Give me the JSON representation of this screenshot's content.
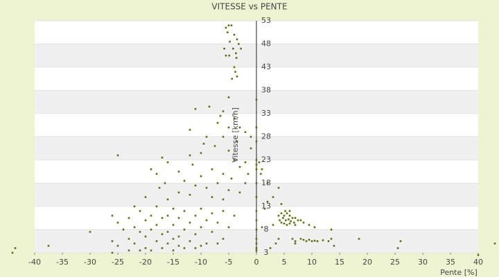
{
  "chart_data": {
    "type": "scatter",
    "title": "VITESSE vs PENTE",
    "x_label": "Pente [%]",
    "y_label": "Vitesse [km/h]",
    "xlim": [
      -40,
      40
    ],
    "xticks": [
      -40,
      -35,
      -30,
      -25,
      -20,
      -15,
      -10,
      -5,
      0,
      5,
      10,
      15,
      20,
      25,
      30,
      35,
      40
    ],
    "ylim": [
      3,
      53
    ],
    "yticks": [
      3,
      8,
      13,
      18,
      23,
      28,
      33,
      38,
      43,
      48,
      53
    ],
    "grid": true,
    "series": [
      {
        "color": "#5f6e0c",
        "x": [
          -5.5,
          -5,
          -4.5,
          -5.2,
          -4,
          -3.5,
          -4.8,
          -3.2,
          -5.8,
          -4.2,
          -3.7,
          -5.5,
          -4.9,
          -3.6,
          -2.8,
          -4,
          -3.8,
          -3.5,
          -4.4,
          -5,
          -6,
          -8.5,
          -11,
          -6.5,
          -4,
          -7,
          -3,
          -5,
          -12,
          -9,
          -2,
          -1,
          -6,
          -3.5,
          -9.5,
          -7.5,
          -1,
          -5,
          -10,
          -12,
          -25,
          -17,
          -4,
          -2,
          -16,
          -11.5,
          -19,
          -8,
          -3,
          -14,
          -6,
          -1.5,
          -18,
          -10,
          -4.5,
          -13,
          -16.5,
          -7,
          -2,
          -11,
          -17.5,
          -9,
          -5,
          -14,
          -3,
          -12,
          -20,
          -8,
          -6,
          -16,
          -22,
          -18,
          -15,
          -10,
          -6,
          -21,
          -13,
          -8,
          -26,
          -19,
          -16,
          -11,
          -4,
          -23,
          -17,
          -14,
          -9,
          -20,
          -25,
          -12,
          -7,
          -18,
          -15,
          -22,
          -10,
          -5,
          -24,
          -19,
          -13,
          -16,
          -21,
          -8,
          -11,
          -17,
          -14,
          -20,
          -23,
          -6,
          -15,
          -26,
          -18,
          -12,
          -9,
          -22,
          -16,
          -25,
          -14,
          -10,
          -20,
          -17,
          -13,
          -23,
          -19,
          -15,
          -26,
          -21,
          -11,
          -7,
          0,
          0,
          0,
          0,
          0,
          0,
          0.5,
          1,
          0.8,
          0,
          0,
          0,
          0,
          0,
          0,
          0,
          0,
          0,
          2,
          4,
          3,
          2,
          4.5,
          1.5,
          3,
          1,
          4,
          3.5,
          7,
          2.5,
          4,
          4.5,
          5,
          5.5,
          6,
          6.5,
          7,
          4.2,
          4.8,
          5.3,
          5.8,
          6.2,
          6.8,
          7.5,
          8,
          4.5,
          5,
          5.5,
          6,
          7,
          8.5,
          9.5,
          5.2,
          6,
          10.5,
          13.5,
          6.5,
          7,
          8,
          8.5,
          9,
          9.5,
          10,
          10.5,
          11,
          12,
          13,
          13.5,
          14,
          18.5,
          25.5,
          26,
          -44,
          -43.5,
          -37.5,
          -30,
          40,
          43
        ],
        "values": [
          51.5,
          52,
          52,
          50.5,
          50,
          49,
          48.5,
          48,
          47,
          47,
          46,
          45.5,
          45.5,
          45,
          47,
          43,
          42,
          41,
          40.5,
          36.5,
          33.5,
          34.5,
          34,
          32.5,
          32,
          31,
          30,
          30,
          29.5,
          28,
          29,
          28,
          28,
          27,
          26.5,
          26,
          25.5,
          25,
          24.5,
          24,
          24,
          23.5,
          23,
          22.5,
          22.5,
          22,
          21,
          21,
          21.5,
          20.5,
          20,
          20,
          20,
          19.5,
          19,
          18.5,
          18,
          18,
          18,
          17.5,
          17,
          17,
          16.5,
          16,
          16,
          15.5,
          15,
          15,
          14.5,
          14.5,
          13,
          13,
          12.5,
          12.5,
          12,
          12,
          12,
          11.5,
          11,
          11,
          11,
          11,
          11,
          10.5,
          10.5,
          10.5,
          10,
          10,
          9.5,
          9.5,
          9.5,
          9,
          9,
          8.5,
          8.5,
          8.5,
          8,
          8,
          8,
          7.5,
          7.5,
          7.5,
          7,
          7,
          6.5,
          6.5,
          6,
          6,
          6,
          5.5,
          5.5,
          5.5,
          5,
          5,
          5,
          4.5,
          4.5,
          4.5,
          4,
          4,
          4,
          3.5,
          3.5,
          3.5,
          3,
          3.5,
          4,
          5,
          36,
          30,
          27,
          23,
          22,
          21,
          22.5,
          21,
          20,
          18,
          15,
          12,
          10,
          8,
          6,
          5,
          4,
          3.5,
          18,
          17,
          15,
          14,
          13.5,
          12.5,
          9,
          8.5,
          6,
          5,
          5,
          4,
          11,
          11.5,
          11,
          11.5,
          11,
          10.5,
          10.5,
          10,
          10.5,
          10,
          10.2,
          9.8,
          9.5,
          10,
          10,
          9.5,
          9.3,
          9,
          9.3,
          9,
          9.5,
          9,
          12,
          12,
          8.5,
          8,
          6,
          5.5,
          6,
          5.8,
          5.5,
          5.8,
          5.5,
          5.6,
          5.5,
          5.7,
          5.5,
          6,
          4.5,
          6,
          4,
          5.5,
          3,
          4,
          4.5,
          7.5,
          2.5,
          5
        ]
      }
    ]
  }
}
